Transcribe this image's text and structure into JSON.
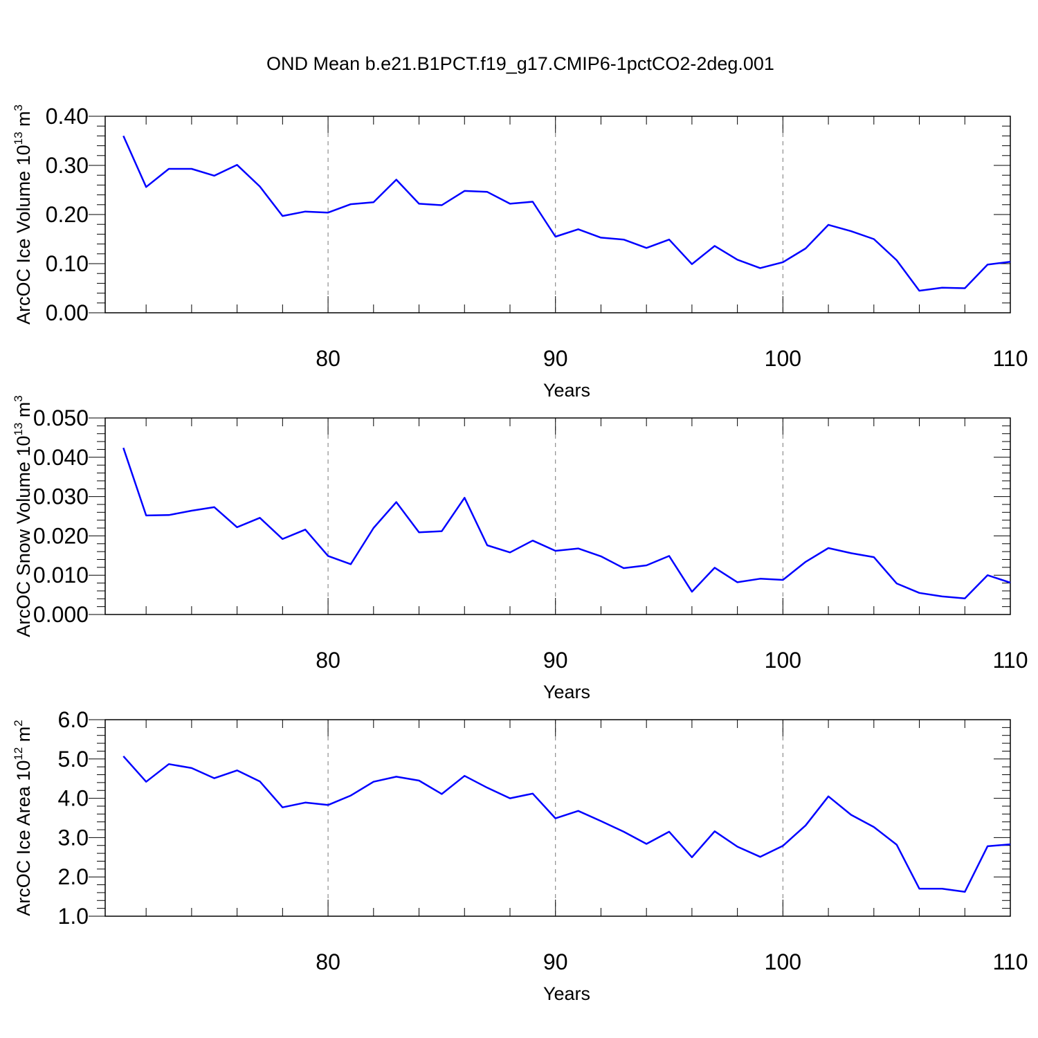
{
  "title": "OND Mean b.e21.B1PCT.f19_g17.CMIP6-1pctCO2-2deg.001",
  "colors": {
    "line": "#0000ff",
    "axis": "#000000",
    "grid": "#777777"
  },
  "chart_data": [
    {
      "type": "line",
      "ylabel": "ArcOC Ice Volume 10",
      "ylabel_exp": "13",
      "ylabel_unit": " m",
      "ylabel_unit_exp": "3",
      "xlabel": "Years",
      "xlim": [
        71,
        110
      ],
      "ylim": [
        0.0,
        0.4
      ],
      "xticks": [
        80,
        90,
        100,
        110
      ],
      "xtick_labels": [
        "80",
        "90",
        "100",
        "110"
      ],
      "yticks": [
        0.0,
        0.1,
        0.2,
        0.3,
        0.4
      ],
      "ytick_labels": [
        "0.00",
        "0.10",
        "0.20",
        "0.30",
        "0.40"
      ],
      "grid": "vertical dashed at major x ticks",
      "series": [
        {
          "x": [
            71,
            72,
            73,
            74,
            75,
            76,
            77,
            78,
            79,
            80,
            81,
            82,
            83,
            84,
            85,
            86,
            87,
            88,
            89,
            90,
            91,
            92,
            93,
            94,
            95,
            96,
            97,
            98,
            99,
            100,
            101,
            102,
            103,
            104,
            105,
            106,
            107,
            108,
            109,
            110
          ],
          "values": [
            0.36,
            0.256,
            0.293,
            0.293,
            0.279,
            0.301,
            0.257,
            0.197,
            0.206,
            0.204,
            0.221,
            0.225,
            0.271,
            0.222,
            0.219,
            0.248,
            0.246,
            0.222,
            0.226,
            0.155,
            0.17,
            0.153,
            0.149,
            0.132,
            0.149,
            0.099,
            0.136,
            0.108,
            0.091,
            0.103,
            0.131,
            0.179,
            0.166,
            0.15,
            0.107,
            0.045,
            0.051,
            0.05,
            0.098,
            0.104
          ]
        }
      ]
    },
    {
      "type": "line",
      "ylabel": "ArcOC Snow Volume 10",
      "ylabel_exp": "13",
      "ylabel_unit": " m",
      "ylabel_unit_exp": "3",
      "xlabel": "Years",
      "xlim": [
        71,
        110
      ],
      "ylim": [
        0.0,
        0.05
      ],
      "xticks": [
        80,
        90,
        100,
        110
      ],
      "xtick_labels": [
        "80",
        "90",
        "100",
        "110"
      ],
      "yticks": [
        0.0,
        0.01,
        0.02,
        0.03,
        0.04,
        0.05
      ],
      "ytick_labels": [
        "0.000",
        "0.010",
        "0.020",
        "0.030",
        "0.040",
        "0.050"
      ],
      "grid": "vertical dashed at major x ticks",
      "series": [
        {
          "x": [
            71,
            72,
            73,
            74,
            75,
            76,
            77,
            78,
            79,
            80,
            81,
            82,
            83,
            84,
            85,
            86,
            87,
            88,
            89,
            90,
            91,
            92,
            93,
            94,
            95,
            96,
            97,
            98,
            99,
            100,
            101,
            102,
            103,
            104,
            105,
            106,
            107,
            108,
            109,
            110
          ],
          "values": [
            0.0424,
            0.0252,
            0.0253,
            0.0264,
            0.0273,
            0.0222,
            0.0246,
            0.0192,
            0.0216,
            0.0149,
            0.0128,
            0.022,
            0.0286,
            0.0209,
            0.0212,
            0.0297,
            0.0176,
            0.0158,
            0.0188,
            0.0162,
            0.0168,
            0.0148,
            0.0118,
            0.0125,
            0.0149,
            0.0058,
            0.0119,
            0.0082,
            0.0091,
            0.0088,
            0.0134,
            0.0169,
            0.0156,
            0.0146,
            0.0079,
            0.0055,
            0.0046,
            0.0041,
            0.01,
            0.0081
          ]
        }
      ]
    },
    {
      "type": "line",
      "ylabel": "ArcOC Ice Area 10",
      "ylabel_exp": "12",
      "ylabel_unit": " m",
      "ylabel_unit_exp": "2",
      "xlabel": "Years",
      "xlim": [
        71,
        110
      ],
      "ylim": [
        1.0,
        6.0
      ],
      "xticks": [
        80,
        90,
        100,
        110
      ],
      "xtick_labels": [
        "80",
        "90",
        "100",
        "110"
      ],
      "yticks": [
        1.0,
        2.0,
        3.0,
        4.0,
        5.0,
        6.0
      ],
      "ytick_labels": [
        "1.0",
        "2.0",
        "3.0",
        "4.0",
        "5.0",
        "6.0"
      ],
      "grid": "vertical dashed at major x ticks",
      "series": [
        {
          "x": [
            71,
            72,
            73,
            74,
            75,
            76,
            77,
            78,
            79,
            80,
            81,
            82,
            83,
            84,
            85,
            86,
            87,
            88,
            89,
            90,
            91,
            92,
            93,
            94,
            95,
            96,
            97,
            98,
            99,
            100,
            101,
            102,
            103,
            104,
            105,
            106,
            107,
            108,
            109,
            110
          ],
          "values": [
            5.07,
            4.42,
            4.87,
            4.77,
            4.51,
            4.71,
            4.43,
            3.77,
            3.89,
            3.83,
            4.07,
            4.42,
            4.55,
            4.45,
            4.11,
            4.57,
            4.27,
            4.0,
            4.12,
            3.49,
            3.68,
            3.42,
            3.15,
            2.84,
            3.15,
            2.5,
            3.16,
            2.77,
            2.51,
            2.79,
            3.31,
            4.05,
            3.58,
            3.27,
            2.82,
            1.7,
            1.7,
            1.62,
            2.78,
            2.83
          ]
        }
      ]
    }
  ]
}
